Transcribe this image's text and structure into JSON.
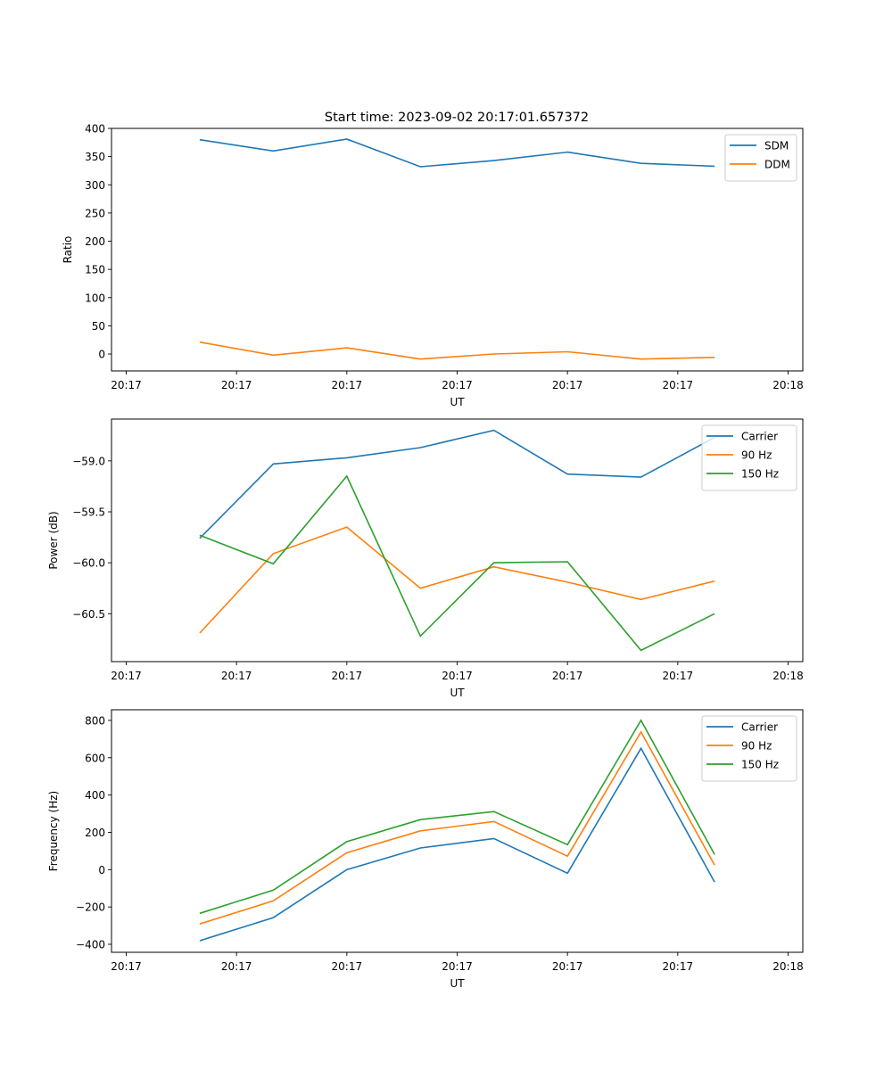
{
  "figure": {
    "title": "Start time: 2023-09-02 20:17:01.657372"
  },
  "chart_data": [
    {
      "type": "line",
      "title": "Start time: 2023-09-02 20:17:01.657372",
      "xlabel": "UT",
      "ylabel": "Ratio",
      "x_tick_labels": [
        "20:17",
        "20:17",
        "20:17",
        "20:17",
        "20:17",
        "20:17",
        "20:18"
      ],
      "x": [
        1,
        2,
        3,
        4,
        5,
        6,
        7,
        8
      ],
      "xlim": [
        -0.2,
        9.2
      ],
      "ylim": [
        -30,
        400
      ],
      "y_ticks": [
        0,
        50,
        100,
        150,
        200,
        250,
        300,
        350,
        400
      ],
      "y_tick_labels": [
        "0",
        "50",
        "100",
        "150",
        "200",
        "250",
        "300",
        "350",
        "400"
      ],
      "legend_position": "top-right",
      "grid": false,
      "series": [
        {
          "name": "SDM",
          "color": "#1f77b4",
          "values": [
            380,
            360,
            381,
            332,
            343,
            358,
            338,
            333
          ]
        },
        {
          "name": "DDM",
          "color": "#ff7f0e",
          "values": [
            21,
            -2,
            11,
            -9,
            0,
            4,
            -9,
            -6
          ]
        }
      ]
    },
    {
      "type": "line",
      "title": "",
      "xlabel": "UT",
      "ylabel": "Power (dB)",
      "x_tick_labels": [
        "20:17",
        "20:17",
        "20:17",
        "20:17",
        "20:17",
        "20:17",
        "20:18"
      ],
      "x": [
        1,
        2,
        3,
        4,
        5,
        6,
        7,
        8
      ],
      "xlim": [
        -0.2,
        9.2
      ],
      "ylim": [
        -60.97,
        -58.59
      ],
      "y_ticks": [
        -60.5,
        -60.0,
        -59.5,
        -59.0
      ],
      "y_tick_labels": [
        "−60.5",
        "−60.0",
        "−59.5",
        "−59.0"
      ],
      "legend_position": "top-right",
      "grid": false,
      "series": [
        {
          "name": "Carrier",
          "color": "#1f77b4",
          "values": [
            -59.76,
            -59.03,
            -58.97,
            -58.87,
            -58.7,
            -59.13,
            -59.16,
            -58.77
          ]
        },
        {
          "name": "90 Hz",
          "color": "#ff7f0e",
          "values": [
            -60.69,
            -59.91,
            -59.65,
            -60.25,
            -60.04,
            -60.19,
            -60.36,
            -60.18
          ]
        },
        {
          "name": "150 Hz",
          "color": "#2ca02c",
          "values": [
            -59.73,
            -60.01,
            -59.15,
            -60.72,
            -60.0,
            -59.99,
            -60.86,
            -60.5
          ]
        }
      ]
    },
    {
      "type": "line",
      "title": "",
      "xlabel": "UT",
      "ylabel": "Frequency (Hz)",
      "x_tick_labels": [
        "20:17",
        "20:17",
        "20:17",
        "20:17",
        "20:17",
        "20:17",
        "20:18"
      ],
      "x": [
        1,
        2,
        3,
        4,
        5,
        6,
        7,
        8
      ],
      "xlim": [
        -0.2,
        9.2
      ],
      "ylim": [
        -443,
        857
      ],
      "y_ticks": [
        -400,
        -200,
        0,
        200,
        400,
        600,
        800
      ],
      "y_tick_labels": [
        "−400",
        "−200",
        "0",
        "200",
        "400",
        "600",
        "800"
      ],
      "legend_position": "top-right",
      "grid": false,
      "series": [
        {
          "name": "Carrier",
          "color": "#1f77b4",
          "values": [
            -381,
            -257,
            0,
            116,
            167,
            -19,
            650,
            -67
          ]
        },
        {
          "name": "90 Hz",
          "color": "#ff7f0e",
          "values": [
            -291,
            -167,
            91,
            208,
            258,
            72,
            738,
            24
          ]
        },
        {
          "name": "150 Hz",
          "color": "#2ca02c",
          "values": [
            -234,
            -110,
            150,
            268,
            311,
            134,
            800,
            82
          ]
        }
      ]
    }
  ]
}
